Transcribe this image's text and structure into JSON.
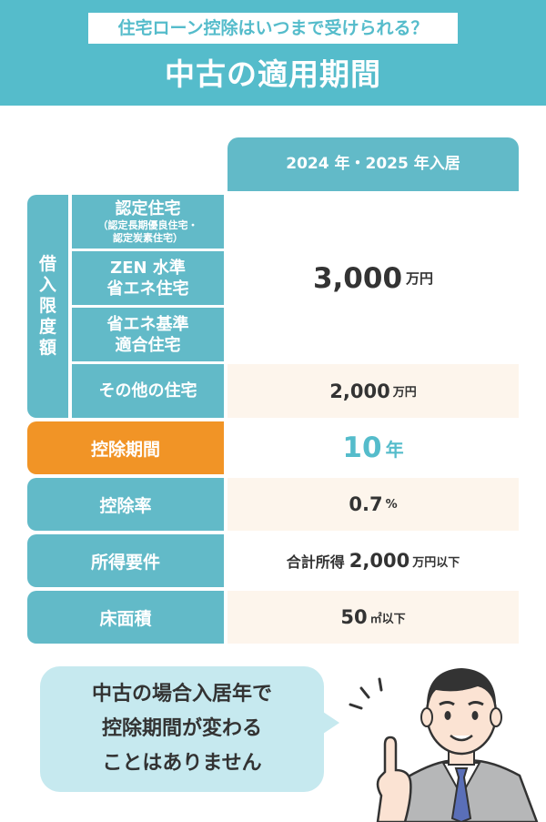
{
  "header": {
    "subtitle": "住宅ローン控除はいつまで受けられる？",
    "title": "中古の適用期間"
  },
  "table": {
    "column_header": "2024 年・2025 年入居",
    "side_label": "借入限度額",
    "categories": [
      {
        "main": "認定住宅",
        "sub1": "（認定長期優良住宅・",
        "sub2": "認定炭素住宅）"
      },
      {
        "line1": "ZEN 水準",
        "line2": "省エネ住宅"
      },
      {
        "line1": "省エネ基準",
        "line2": "適合住宅"
      },
      {
        "line1": "その他の住宅"
      }
    ],
    "limit_main": {
      "value": "3,000",
      "unit": "万円"
    },
    "limit_other": {
      "value": "2,000",
      "unit": "万円"
    },
    "rows": [
      {
        "label": "控除期間",
        "value": "10",
        "unit": "年"
      },
      {
        "label": "控除率",
        "value": "0.7",
        "unit": "%"
      },
      {
        "label": "所得要件",
        "prefix": "合計所得",
        "value": "2,000",
        "unit": "万円以下"
      },
      {
        "label": "床面積",
        "value": "50",
        "unit": "㎡以下"
      }
    ]
  },
  "bubble": {
    "line1": "中古の場合入居年で",
    "line2": "控除期間が変わる",
    "line3": "ことはありません"
  },
  "colors": {
    "teal": "#55bccb",
    "teal_cell": "#62bac8",
    "orange": "#f19426",
    "cream": "#fdf5ec",
    "bubble": "#c6e9ef"
  }
}
